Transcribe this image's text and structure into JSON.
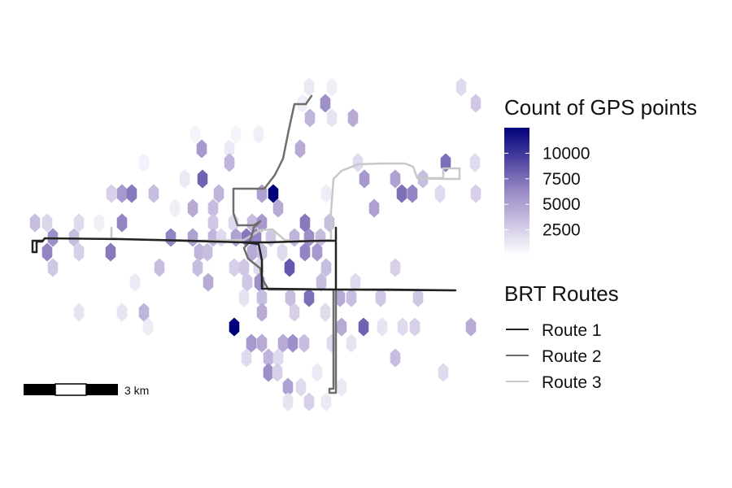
{
  "map": {
    "hexbins": [
      [
        380,
        107,
        1200
      ],
      [
        408,
        107,
        900
      ],
      [
        567,
        107,
        2000
      ],
      [
        400,
        127,
        6000
      ],
      [
        372,
        127,
        900
      ],
      [
        585,
        127,
        3000
      ],
      [
        381,
        145,
        4000
      ],
      [
        408,
        145,
        1500
      ],
      [
        434,
        145,
        4500
      ],
      [
        240,
        165,
        600
      ],
      [
        290,
        165,
        600
      ],
      [
        318,
        165,
        900
      ],
      [
        248,
        183,
        5500
      ],
      [
        369,
        183,
        4500
      ],
      [
        282,
        183,
        1200
      ],
      [
        177,
        200,
        800
      ],
      [
        282,
        200,
        4000
      ],
      [
        548,
        200,
        7500
      ],
      [
        584,
        200,
        2000
      ],
      [
        440,
        200,
        2000
      ],
      [
        249,
        220,
        8000
      ],
      [
        448,
        220,
        5500
      ],
      [
        486,
        220,
        5000
      ],
      [
        520,
        220,
        3500
      ],
      [
        227,
        220,
        1200
      ],
      [
        137,
        238,
        2500
      ],
      [
        150,
        238,
        5500
      ],
      [
        162,
        238,
        7000
      ],
      [
        189,
        238,
        3500
      ],
      [
        269,
        238,
        4000
      ],
      [
        322,
        238,
        5000
      ],
      [
        336,
        238,
        12500
      ],
      [
        494,
        238,
        7500
      ],
      [
        507,
        238,
        6500
      ],
      [
        541,
        238,
        2000
      ],
      [
        585,
        238,
        2500
      ],
      [
        401,
        238,
        1000
      ],
      [
        237,
        256,
        4500
      ],
      [
        262,
        256,
        3500
      ],
      [
        342,
        256,
        4500
      ],
      [
        460,
        256,
        5000
      ],
      [
        215,
        256,
        900
      ],
      [
        43,
        274,
        3500
      ],
      [
        58,
        274,
        2200
      ],
      [
        97,
        274,
        2000
      ],
      [
        150,
        274,
        6500
      ],
      [
        122,
        274,
        900
      ],
      [
        262,
        274,
        3000
      ],
      [
        310,
        274,
        3500
      ],
      [
        322,
        274,
        5500
      ],
      [
        375,
        274,
        7000
      ],
      [
        405,
        274,
        3500
      ],
      [
        287,
        274,
        2000
      ],
      [
        65,
        292,
        6000
      ],
      [
        91,
        292,
        3500
      ],
      [
        210,
        292,
        6500
      ],
      [
        237,
        292,
        5000
      ],
      [
        262,
        292,
        4000
      ],
      [
        290,
        292,
        5000
      ],
      [
        303,
        292,
        7000
      ],
      [
        315,
        292,
        6500
      ],
      [
        333,
        292,
        3000
      ],
      [
        362,
        292,
        4000
      ],
      [
        380,
        292,
        6000
      ],
      [
        394,
        292,
        3500
      ],
      [
        272,
        292,
        2000
      ],
      [
        58,
        310,
        6500
      ],
      [
        97,
        310,
        2500
      ],
      [
        136,
        310,
        7000
      ],
      [
        245,
        310,
        4000
      ],
      [
        255,
        310,
        3500
      ],
      [
        310,
        310,
        4500
      ],
      [
        322,
        310,
        3500
      ],
      [
        375,
        310,
        6500
      ],
      [
        390,
        310,
        5500
      ],
      [
        347,
        310,
        2000
      ],
      [
        65,
        329,
        3000
      ],
      [
        196,
        329,
        3500
      ],
      [
        243,
        329,
        3500
      ],
      [
        288,
        329,
        2500
      ],
      [
        300,
        329,
        3000
      ],
      [
        356,
        329,
        8500
      ],
      [
        318,
        329,
        2000
      ],
      [
        401,
        329,
        3500
      ],
      [
        486,
        329,
        2500
      ],
      [
        256,
        347,
        4500
      ],
      [
        304,
        347,
        3000
      ],
      [
        319,
        347,
        6000
      ],
      [
        395,
        347,
        3500
      ],
      [
        166,
        347,
        1200
      ],
      [
        437,
        347,
        2000
      ],
      [
        322,
        366,
        3500
      ],
      [
        357,
        366,
        3500
      ],
      [
        380,
        366,
        7500
      ],
      [
        418,
        366,
        4500
      ],
      [
        432,
        366,
        3500
      ],
      [
        468,
        366,
        3000
      ],
      [
        514,
        366,
        3000
      ],
      [
        300,
        366,
        1500
      ],
      [
        97,
        384,
        1500
      ],
      [
        150,
        384,
        1500
      ],
      [
        177,
        384,
        4000
      ],
      [
        322,
        384,
        4500
      ],
      [
        362,
        384,
        2500
      ],
      [
        400,
        384,
        2000
      ],
      [
        288,
        402,
        12500
      ],
      [
        420,
        402,
        4500
      ],
      [
        447,
        402,
        8000
      ],
      [
        579,
        402,
        4500
      ],
      [
        470,
        402,
        1500
      ],
      [
        495,
        402,
        2000
      ],
      [
        510,
        402,
        2500
      ],
      [
        182,
        402,
        1000
      ],
      [
        309,
        422,
        5500
      ],
      [
        322,
        422,
        4500
      ],
      [
        348,
        422,
        4500
      ],
      [
        360,
        422,
        6000
      ],
      [
        374,
        422,
        3500
      ],
      [
        408,
        422,
        2000
      ],
      [
        432,
        422,
        1500
      ],
      [
        330,
        440,
        4000
      ],
      [
        303,
        440,
        2000
      ],
      [
        342,
        440,
        2000
      ],
      [
        486,
        440,
        3500
      ],
      [
        330,
        458,
        6000
      ],
      [
        341,
        458,
        2500
      ],
      [
        545,
        458,
        2000
      ],
      [
        390,
        458,
        1200
      ],
      [
        354,
        476,
        5000
      ],
      [
        370,
        476,
        2000
      ],
      [
        420,
        476,
        1200
      ],
      [
        354,
        494,
        1500
      ],
      [
        380,
        494,
        2500
      ],
      [
        401,
        494,
        1200
      ]
    ],
    "routes": [
      {
        "name": "Route 1",
        "color": "#222222",
        "width": 2.5,
        "points": [
          [
            55,
            293
          ],
          [
            148,
            294
          ],
          [
            235,
            296
          ],
          [
            300,
            298
          ],
          [
            330,
            298
          ],
          [
            360,
            297
          ],
          [
            396,
            296
          ],
          [
            413,
            296
          ],
          [
            413,
            356
          ],
          [
            480,
            356
          ],
          [
            560,
            357
          ],
          [
            413,
            356
          ],
          [
            413,
            280
          ],
          [
            413,
            356
          ],
          [
            330,
            355
          ],
          [
            322,
            355
          ],
          [
            322,
            320
          ],
          [
            318,
            300
          ],
          [
            300,
            298
          ],
          [
            150,
            294
          ],
          [
            55,
            293
          ],
          [
            52,
            297
          ],
          [
            45,
            297
          ],
          [
            45,
            310
          ],
          [
            40,
            310
          ],
          [
            40,
            296
          ],
          [
            52,
            296
          ]
        ]
      },
      {
        "name": "Route 2",
        "color": "#6e6e6e",
        "width": 2.5,
        "points": [
          [
            383,
            118
          ],
          [
            376,
            128
          ],
          [
            362,
            128
          ],
          [
            355,
            160
          ],
          [
            348,
            195
          ],
          [
            338,
            215
          ],
          [
            325,
            232
          ],
          [
            315,
            232
          ],
          [
            287,
            232
          ],
          [
            287,
            262
          ],
          [
            292,
            277
          ],
          [
            312,
            277
          ],
          [
            320,
            272
          ],
          [
            312,
            280
          ],
          [
            308,
            295
          ],
          [
            300,
            305
          ],
          [
            305,
            318
          ],
          [
            320,
            330
          ],
          [
            322,
            342
          ],
          [
            330,
            356
          ],
          [
            410,
            356
          ],
          [
            410,
            430
          ],
          [
            410,
            478
          ],
          [
            405,
            478
          ],
          [
            405,
            483
          ],
          [
            413,
            483
          ],
          [
            413,
            356
          ]
        ]
      },
      {
        "name": "Route 3",
        "color": "#c8c8c8",
        "width": 2.5,
        "points": [
          [
            137,
            280
          ],
          [
            137,
            293
          ],
          [
            150,
            294
          ],
          [
            235,
            296
          ],
          [
            300,
            295
          ],
          [
            320,
            283
          ],
          [
            335,
            282
          ],
          [
            350,
            295
          ],
          [
            380,
            297
          ],
          [
            407,
            295
          ],
          [
            407,
            260
          ],
          [
            410,
            220
          ],
          [
            420,
            210
          ],
          [
            440,
            202
          ],
          [
            470,
            201
          ],
          [
            498,
            201
          ],
          [
            508,
            205
          ],
          [
            513,
            219
          ],
          [
            545,
            219
          ],
          [
            545,
            207
          ],
          [
            565,
            207
          ],
          [
            565,
            220
          ],
          [
            545,
            220
          ],
          [
            513,
            219
          ]
        ]
      }
    ]
  },
  "legend": {
    "fill_title": "Count of GPS points",
    "fill_ticks": [
      "10000",
      "7500",
      "5000",
      "2500"
    ],
    "fill_tick_values": [
      10000,
      7500,
      5000,
      2500
    ],
    "fill_range": [
      0,
      12500
    ],
    "color_low": "#ffffff",
    "color_high": "#00007a",
    "routes_title": "BRT Routes",
    "route_labels": [
      "Route 1",
      "Route 2",
      "Route 3"
    ]
  },
  "scale_bar": {
    "label": "3 km"
  }
}
